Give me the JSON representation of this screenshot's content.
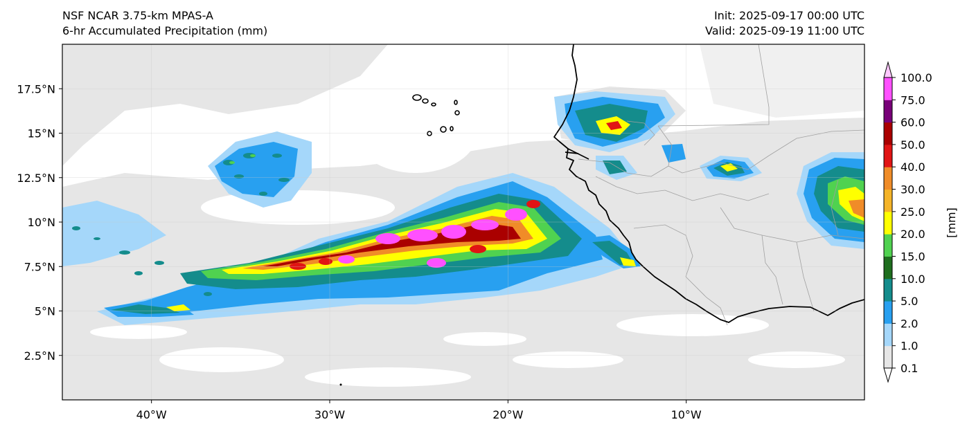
{
  "header": {
    "model": "NSF NCAR 3.75-km MPAS-A",
    "field": "6-hr Accumulated Precipitation (mm)",
    "init": "Init: 2025-09-17 00:00 UTC",
    "valid": "Valid: 2025-09-19 11:00 UTC"
  },
  "map": {
    "lon_range": [
      -45,
      0
    ],
    "lat_range": [
      0,
      20
    ],
    "lon_ticks": [
      {
        "value": -40,
        "label": "40°W"
      },
      {
        "value": -30,
        "label": "30°W"
      },
      {
        "value": -20,
        "label": "20°W"
      },
      {
        "value": -10,
        "label": "10°W"
      }
    ],
    "lat_ticks": [
      {
        "value": 2.5,
        "label": "2.5°N"
      },
      {
        "value": 5,
        "label": "5°N"
      },
      {
        "value": 7.5,
        "label": "7.5°N"
      },
      {
        "value": 10,
        "label": "10°N"
      },
      {
        "value": 12.5,
        "label": "12.5°N"
      },
      {
        "value": 15,
        "label": "15°N"
      },
      {
        "value": 17.5,
        "label": "17.5°N"
      }
    ],
    "ocean_color": "#ffffff",
    "coastline_color": "#000000",
    "border_color": "#a0a0a0"
  },
  "colorbar": {
    "unit_label": "[mm]",
    "levels": [
      "0.1",
      "1.0",
      "2.0",
      "5.0",
      "10.0",
      "15.0",
      "20.0",
      "25.0",
      "30.0",
      "40.0",
      "50.0",
      "60.0",
      "75.0",
      "100.0"
    ],
    "colors": [
      "#e6e6e6",
      "#a5d7fa",
      "#28a0f0",
      "#148c8c",
      "#1e6e1e",
      "#50d250",
      "#ffff00",
      "#f5b428",
      "#f08c28",
      "#e11414",
      "#aa0000",
      "#780078",
      "#ff50ff"
    ],
    "extend_low_color": "#ffffff",
    "extend_high_color": "#ffc8ff"
  }
}
